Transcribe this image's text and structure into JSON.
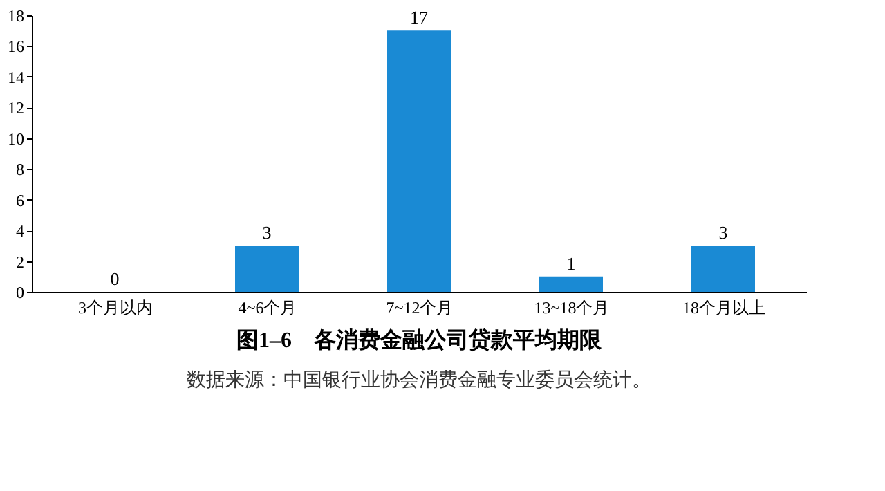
{
  "chart_data": {
    "type": "bar",
    "title": "图1–6　各消费金融公司贷款平均期限",
    "categories": [
      "3个月以内",
      "4~6个月",
      "7~12个月",
      "13~18个月",
      "18个月以上"
    ],
    "values": [
      0,
      3,
      17,
      1,
      3
    ],
    "color": "#1a8ad4",
    "data_labels": true,
    "ylim": [
      0,
      18
    ],
    "yticks": [
      0,
      2,
      4,
      6,
      8,
      10,
      12,
      14,
      16,
      18
    ],
    "grid": false,
    "annotations": [
      "数据来源：中国银行业协会消费金融专业委员会统计。"
    ]
  }
}
